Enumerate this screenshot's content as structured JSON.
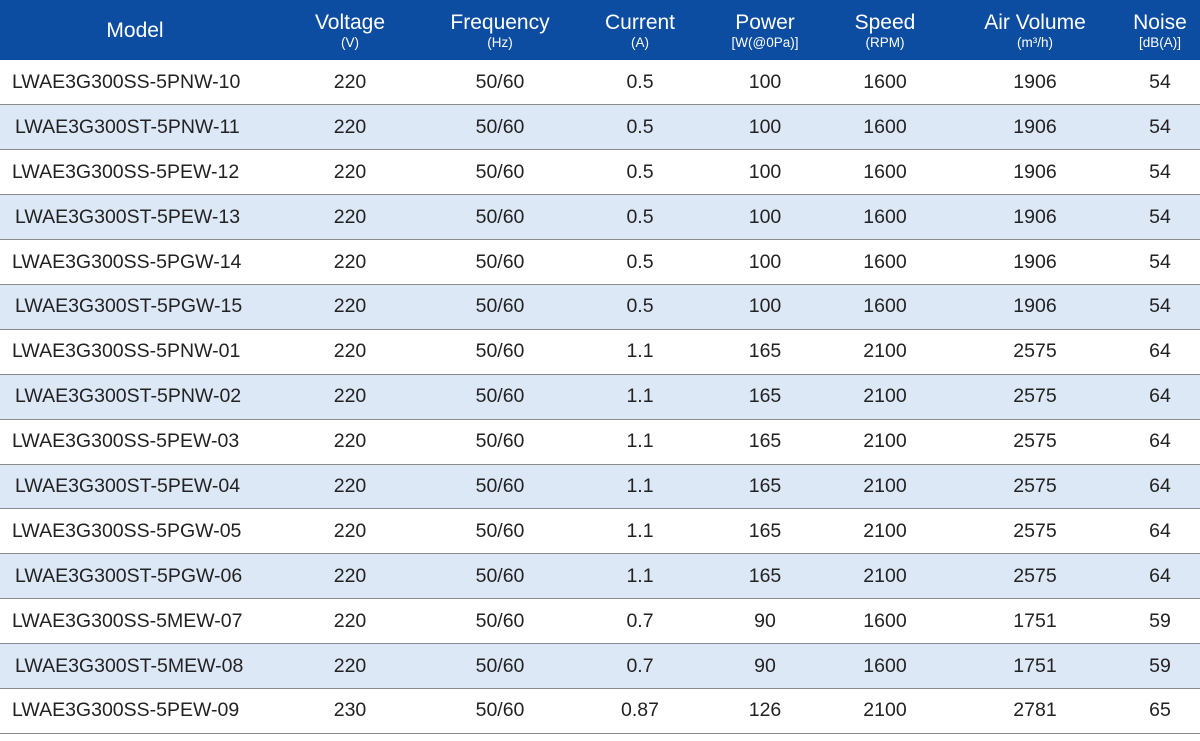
{
  "headers": {
    "model": {
      "main": "Model"
    },
    "voltage": {
      "main": "Voltage",
      "unit": "(V)"
    },
    "frequency": {
      "main": "Frequency",
      "unit": "(Hz)"
    },
    "current": {
      "main": "Current",
      "unit": "(A)"
    },
    "power": {
      "main": "Power",
      "unit": "[W(@0Pa)]"
    },
    "speed": {
      "main": "Speed",
      "unit": "(RPM)"
    },
    "air_volume": {
      "main": "Air Volume",
      "unit": "(m³/h)"
    },
    "noise": {
      "main": "Noise",
      "unit": "[dB(A)]"
    }
  },
  "colors": {
    "header_bg": "#0c4da2",
    "header_text": "#ffffff",
    "alt_row_bg": "#dde8f6",
    "row_divider": "#8b8b8b"
  },
  "rows": [
    {
      "model": "LWAE3G300SS-5PNW-10",
      "voltage": "220",
      "frequency": "50/60",
      "current": "0.5",
      "power": "100",
      "speed": "1600",
      "air_volume": "1906",
      "noise": "54"
    },
    {
      "model": "LWAE3G300ST-5PNW-11",
      "voltage": "220",
      "frequency": "50/60",
      "current": "0.5",
      "power": "100",
      "speed": "1600",
      "air_volume": "1906",
      "noise": "54"
    },
    {
      "model": "LWAE3G300SS-5PEW-12",
      "voltage": "220",
      "frequency": "50/60",
      "current": "0.5",
      "power": "100",
      "speed": "1600",
      "air_volume": "1906",
      "noise": "54"
    },
    {
      "model": "LWAE3G300ST-5PEW-13",
      "voltage": "220",
      "frequency": "50/60",
      "current": "0.5",
      "power": "100",
      "speed": "1600",
      "air_volume": "1906",
      "noise": "54"
    },
    {
      "model": "LWAE3G300SS-5PGW-14",
      "voltage": "220",
      "frequency": "50/60",
      "current": "0.5",
      "power": "100",
      "speed": "1600",
      "air_volume": "1906",
      "noise": "54"
    },
    {
      "model": "LWAE3G300ST-5PGW-15",
      "voltage": "220",
      "frequency": "50/60",
      "current": "0.5",
      "power": "100",
      "speed": "1600",
      "air_volume": "1906",
      "noise": "54"
    },
    {
      "model": "LWAE3G300SS-5PNW-01",
      "voltage": "220",
      "frequency": "50/60",
      "current": "1.1",
      "power": "165",
      "speed": "2100",
      "air_volume": "2575",
      "noise": "64"
    },
    {
      "model": "LWAE3G300ST-5PNW-02",
      "voltage": "220",
      "frequency": "50/60",
      "current": "1.1",
      "power": "165",
      "speed": "2100",
      "air_volume": "2575",
      "noise": "64"
    },
    {
      "model": "LWAE3G300SS-5PEW-03",
      "voltage": "220",
      "frequency": "50/60",
      "current": "1.1",
      "power": "165",
      "speed": "2100",
      "air_volume": "2575",
      "noise": "64"
    },
    {
      "model": "LWAE3G300ST-5PEW-04",
      "voltage": "220",
      "frequency": "50/60",
      "current": "1.1",
      "power": "165",
      "speed": "2100",
      "air_volume": "2575",
      "noise": "64"
    },
    {
      "model": "LWAE3G300SS-5PGW-05",
      "voltage": "220",
      "frequency": "50/60",
      "current": "1.1",
      "power": "165",
      "speed": "2100",
      "air_volume": "2575",
      "noise": "64"
    },
    {
      "model": "LWAE3G300ST-5PGW-06",
      "voltage": "220",
      "frequency": "50/60",
      "current": "1.1",
      "power": "165",
      "speed": "2100",
      "air_volume": "2575",
      "noise": "64"
    },
    {
      "model": "LWAE3G300SS-5MEW-07",
      "voltage": "220",
      "frequency": "50/60",
      "current": "0.7",
      "power": "90",
      "speed": "1600",
      "air_volume": "1751",
      "noise": "59"
    },
    {
      "model": "LWAE3G300ST-5MEW-08",
      "voltage": "220",
      "frequency": "50/60",
      "current": "0.7",
      "power": "90",
      "speed": "1600",
      "air_volume": "1751",
      "noise": "59"
    },
    {
      "model": "LWAE3G300SS-5PEW-09",
      "voltage": "230",
      "frequency": "50/60",
      "current": "0.87",
      "power": "126",
      "speed": "2100",
      "air_volume": "2781",
      "noise": "65"
    }
  ]
}
